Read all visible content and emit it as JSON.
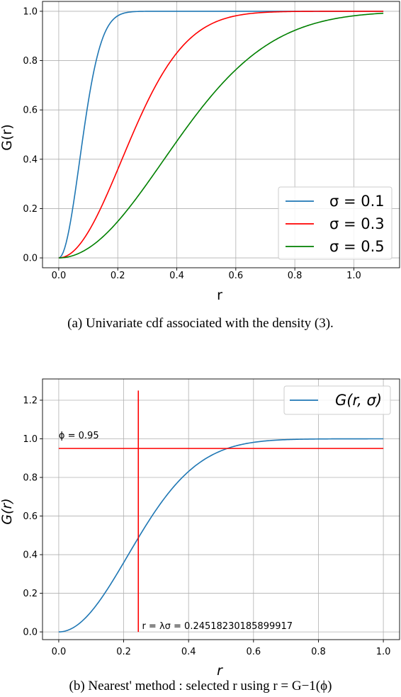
{
  "chart_data": [
    {
      "type": "line",
      "title": "",
      "xlabel": "r",
      "ylabel": "G(r)",
      "xlim": [
        -0.055,
        1.155
      ],
      "ylim": [
        -0.04,
        1.04
      ],
      "xticks": [
        "0.0",
        "0.2",
        "0.4",
        "0.6",
        "0.8",
        "1.0"
      ],
      "yticks": [
        "0.0",
        "0.2",
        "0.4",
        "0.6",
        "0.8",
        "1.0"
      ],
      "grid": true,
      "legend_position": "bottom-right",
      "series": [
        {
          "name": "σ = 0.1",
          "color": "#1f77b4",
          "sigma": 0.1,
          "x_max": 1.1
        },
        {
          "name": "σ = 0.3",
          "color": "#ff0000",
          "sigma": 0.3,
          "x_max": 1.1
        },
        {
          "name": "σ = 0.5",
          "color": "#008000",
          "sigma": 0.5,
          "x_max": 1.1
        }
      ],
      "caption": "(a) Univariate cdf associated with the density (3)."
    },
    {
      "type": "line",
      "title": "",
      "xlabel": "r",
      "ylabel": "G(r)",
      "xlim": [
        -0.05,
        1.05
      ],
      "ylim": [
        -0.04,
        1.31
      ],
      "xticks": [
        "0.0",
        "0.2",
        "0.4",
        "0.6",
        "0.8",
        "1.0"
      ],
      "yticks": [
        "0.0",
        "0.2",
        "0.4",
        "0.6",
        "0.8",
        "1.0",
        "1.2"
      ],
      "grid": true,
      "legend_position": "top-right",
      "series": [
        {
          "name": "G(r, σ)",
          "color": "#1f77b4",
          "sigma": 0.3,
          "x_max": 1.0
        }
      ],
      "hline": {
        "y": 0.95,
        "x_range": [
          0,
          1.0
        ],
        "color": "#ff0000"
      },
      "vline": {
        "x": 0.24518230185899917,
        "y_range": [
          0,
          1.25
        ],
        "color": "#ff0000"
      },
      "annotations": [
        {
          "text": "ϕ = 0.95",
          "x": 0.0,
          "y": 0.95
        },
        {
          "text": "r = λσ = 0.24518230185899917",
          "x": 0.25,
          "y": 0.0
        }
      ],
      "caption": "(b) Nearest' method : selected r using r = G−1(ϕ)"
    }
  ]
}
